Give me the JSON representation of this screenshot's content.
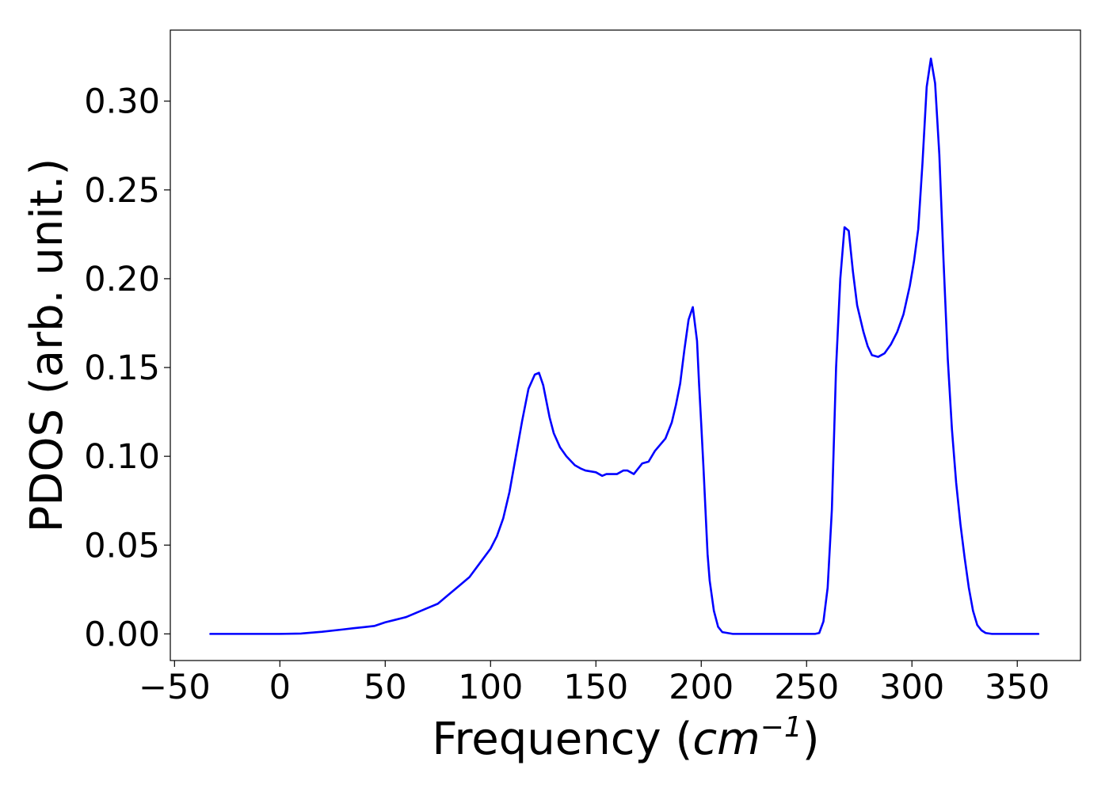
{
  "chart_data": {
    "type": "line",
    "title": "",
    "xlabel": "Frequency (cm^-1)",
    "ylabel": "PDOS (arb. unit.)",
    "xlabel_parts": {
      "prefix": "Frequency (",
      "base": "cm",
      "exponent": "−1",
      "suffix": ")"
    },
    "xlim": [
      -52,
      380
    ],
    "ylim": [
      -0.015,
      0.34
    ],
    "xticks": [
      -50,
      0,
      50,
      100,
      150,
      200,
      250,
      300,
      350
    ],
    "xtick_labels": [
      "−50",
      "0",
      "50",
      "100",
      "150",
      "200",
      "250",
      "300",
      "350"
    ],
    "yticks": [
      0.0,
      0.05,
      0.1,
      0.15,
      0.2,
      0.25,
      0.3
    ],
    "ytick_labels": [
      "0.00",
      "0.05",
      "0.10",
      "0.15",
      "0.20",
      "0.25",
      "0.30"
    ],
    "grid": false,
    "legend": false,
    "colors": {
      "series": "#0000ff",
      "axes": "#000000",
      "background": "#ffffff"
    },
    "series": [
      {
        "x": [
          -33,
          -20,
          -10,
          0,
          10,
          20,
          30,
          35,
          40,
          45,
          50,
          55,
          60,
          65,
          70,
          75,
          80,
          85,
          90,
          95,
          100,
          103,
          106,
          109,
          112,
          115,
          118,
          121,
          123,
          125,
          128,
          130,
          133,
          136,
          140,
          143,
          145,
          150,
          153,
          155,
          158,
          160,
          163,
          165,
          168,
          170,
          172,
          175,
          178,
          183,
          186,
          188,
          190,
          192,
          194,
          196,
          198,
          199,
          200,
          201,
          202,
          203,
          204,
          206,
          208,
          210,
          215,
          220,
          230,
          240,
          250,
          254,
          256,
          258,
          260,
          262,
          264,
          266,
          268,
          270,
          272,
          274,
          277,
          279,
          281,
          284,
          287,
          290,
          293,
          296,
          299,
          301,
          303,
          305,
          307,
          309,
          311,
          313,
          315,
          317,
          319,
          321,
          323,
          325,
          327,
          329,
          331,
          333,
          335,
          338,
          345,
          360
        ],
        "y": [
          0.0,
          0.0,
          0.0,
          0.0,
          0.0002,
          0.0012,
          0.0025,
          0.0032,
          0.0038,
          0.0045,
          0.0065,
          0.008,
          0.0095,
          0.012,
          0.0145,
          0.017,
          0.022,
          0.027,
          0.032,
          0.04,
          0.048,
          0.055,
          0.065,
          0.08,
          0.1,
          0.12,
          0.138,
          0.146,
          0.147,
          0.14,
          0.122,
          0.113,
          0.105,
          0.1,
          0.095,
          0.093,
          0.092,
          0.091,
          0.089,
          0.09,
          0.09,
          0.09,
          0.092,
          0.092,
          0.09,
          0.093,
          0.096,
          0.097,
          0.103,
          0.11,
          0.119,
          0.129,
          0.141,
          0.16,
          0.177,
          0.184,
          0.165,
          0.14,
          0.118,
          0.095,
          0.07,
          0.045,
          0.03,
          0.013,
          0.004,
          0.001,
          0.0,
          0.0,
          0.0,
          0.0,
          0.0,
          0.0,
          0.0005,
          0.007,
          0.026,
          0.07,
          0.15,
          0.2,
          0.229,
          0.227,
          0.204,
          0.185,
          0.17,
          0.162,
          0.157,
          0.156,
          0.158,
          0.163,
          0.17,
          0.18,
          0.196,
          0.21,
          0.228,
          0.265,
          0.308,
          0.324,
          0.31,
          0.27,
          0.21,
          0.155,
          0.115,
          0.085,
          0.062,
          0.043,
          0.026,
          0.013,
          0.005,
          0.002,
          0.0005,
          0.0,
          0.0,
          0.0
        ]
      }
    ]
  }
}
